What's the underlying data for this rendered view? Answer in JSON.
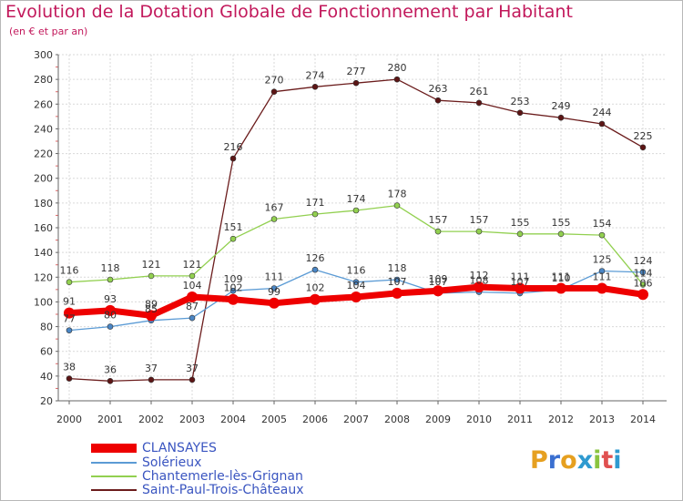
{
  "title": "Evolution de la Dotation Globale de Fonctionnement par Habitant",
  "subtitle": "(en € et par an)",
  "logo_text": "Proxiti",
  "chart_data": {
    "type": "line",
    "title": "Evolution de la Dotation Globale de Fonctionnement par Habitant",
    "subtitle": "(en € et par an)",
    "xlabel": "",
    "ylabel": "",
    "x": [
      "2000",
      "2001",
      "2002",
      "2003",
      "2004",
      "2005",
      "2006",
      "2007",
      "2008",
      "2009",
      "2010",
      "2011",
      "2012",
      "2013",
      "2014"
    ],
    "ylim": [
      20,
      300
    ],
    "yticks": [
      20,
      40,
      60,
      80,
      100,
      120,
      140,
      160,
      180,
      200,
      220,
      240,
      260,
      280,
      300
    ],
    "grid": true,
    "legend_position": "bottom-left",
    "series": [
      {
        "name": "CLANSAYES",
        "color": "#ee0000",
        "values": [
          91,
          93,
          89,
          104,
          102,
          99,
          102,
          104,
          107,
          109,
          112,
          111,
          111,
          111,
          106
        ]
      },
      {
        "name": "Solérieux",
        "color": "#5b9bd5",
        "values": [
          77,
          80,
          85,
          87,
          109,
          111,
          126,
          116,
          118,
          107,
          108,
          107,
          110,
          125,
          124
        ]
      },
      {
        "name": "Chantemerle-lès-Grignan",
        "color": "#92d050",
        "values": [
          116,
          118,
          121,
          121,
          151,
          167,
          171,
          174,
          178,
          157,
          157,
          155,
          155,
          154,
          114
        ]
      },
      {
        "name": "Saint-Paul-Trois-Châteaux",
        "color": "#6b1c1c",
        "values": [
          38,
          36,
          37,
          37,
          216,
          270,
          274,
          277,
          280,
          263,
          261,
          253,
          249,
          244,
          225
        ]
      }
    ]
  }
}
